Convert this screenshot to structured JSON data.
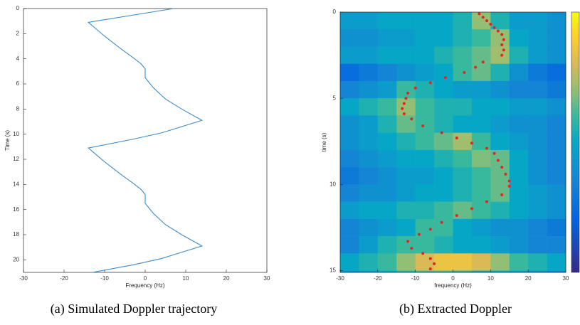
{
  "chart_data": [
    {
      "type": "line",
      "caption": "(a) Simulated Doppler trajectory",
      "xlabel": "Frequency (Hz)",
      "ylabel": "Time (s)",
      "xlim": [
        -30,
        30
      ],
      "xticks": [
        -30,
        -20,
        -10,
        0,
        10,
        20,
        30
      ],
      "ylim": [
        0,
        21
      ],
      "yticks": [
        0,
        2,
        4,
        6,
        8,
        10,
        12,
        14,
        16,
        18,
        20
      ],
      "y_inverted": true,
      "color": "#3d8bc8",
      "x": [
        7,
        -14,
        -10,
        -6,
        -3,
        -1,
        0,
        0,
        1,
        2,
        5,
        9,
        14,
        7,
        4,
        -3,
        -14,
        -10,
        -6,
        -3,
        -1,
        0,
        0,
        1,
        2,
        5,
        9,
        14,
        7,
        4,
        -3,
        -13
      ],
      "values": [
        0,
        1.1,
        2.2,
        3.2,
        3.9,
        4.4,
        4.8,
        5.5,
        5.9,
        6.3,
        7.2,
        8,
        8.9,
        9.6,
        9.9,
        10.4,
        11.1,
        12.2,
        13.2,
        13.9,
        14.4,
        14.8,
        15.5,
        15.9,
        16.3,
        17.2,
        18,
        18.9,
        19.6,
        19.9,
        20.4,
        21
      ]
    },
    {
      "type": "heatmap",
      "caption": "(b) Extracted Doppler",
      "xlabel": "frequency (Hz)",
      "ylabel": "time (s)",
      "xlim": [
        -30,
        30
      ],
      "xticks": [
        -30,
        -20,
        -10,
        0,
        10,
        20,
        30
      ],
      "ylim": [
        0,
        15.1
      ],
      "yticks": [
        0,
        5,
        10,
        15
      ],
      "y_inverted": true,
      "colormap": "parula",
      "clim": [
        0,
        1
      ],
      "heat_x_bins": [
        -30,
        -25,
        -20,
        -15,
        -10,
        -5,
        0,
        5,
        10,
        15,
        20,
        25,
        30
      ],
      "heat_y_bins": [
        0,
        1,
        2,
        3,
        4,
        5,
        6,
        7,
        8,
        9,
        10,
        11,
        12,
        13,
        14,
        15,
        15.1
      ],
      "z": [
        [
          0.45,
          0.45,
          0.5,
          0.5,
          0.5,
          0.5,
          0.55,
          0.7,
          0.55,
          0.45,
          0.45,
          0.4
        ],
        [
          0.4,
          0.4,
          0.45,
          0.45,
          0.5,
          0.5,
          0.55,
          0.6,
          0.7,
          0.5,
          0.45,
          0.4
        ],
        [
          0.45,
          0.45,
          0.5,
          0.5,
          0.5,
          0.55,
          0.6,
          0.65,
          0.72,
          0.55,
          0.45,
          0.4
        ],
        [
          0.25,
          0.3,
          0.35,
          0.4,
          0.45,
          0.5,
          0.6,
          0.65,
          0.55,
          0.4,
          0.3,
          0.25
        ],
        [
          0.35,
          0.4,
          0.45,
          0.6,
          0.55,
          0.5,
          0.45,
          0.45,
          0.4,
          0.35,
          0.35,
          0.3
        ],
        [
          0.5,
          0.55,
          0.6,
          0.7,
          0.6,
          0.55,
          0.55,
          0.5,
          0.5,
          0.45,
          0.45,
          0.4
        ],
        [
          0.4,
          0.45,
          0.55,
          0.65,
          0.6,
          0.55,
          0.5,
          0.5,
          0.45,
          0.4,
          0.4,
          0.35
        ],
        [
          0.4,
          0.45,
          0.5,
          0.55,
          0.6,
          0.65,
          0.72,
          0.6,
          0.5,
          0.45,
          0.4,
          0.35
        ],
        [
          0.35,
          0.4,
          0.45,
          0.5,
          0.5,
          0.55,
          0.6,
          0.68,
          0.65,
          0.5,
          0.4,
          0.35
        ],
        [
          0.3,
          0.35,
          0.4,
          0.45,
          0.45,
          0.5,
          0.55,
          0.6,
          0.65,
          0.5,
          0.4,
          0.35
        ],
        [
          0.35,
          0.4,
          0.4,
          0.45,
          0.5,
          0.5,
          0.55,
          0.6,
          0.65,
          0.5,
          0.45,
          0.4
        ],
        [
          0.45,
          0.5,
          0.5,
          0.55,
          0.55,
          0.6,
          0.65,
          0.6,
          0.55,
          0.5,
          0.45,
          0.4
        ],
        [
          0.35,
          0.4,
          0.45,
          0.5,
          0.6,
          0.6,
          0.5,
          0.45,
          0.4,
          0.4,
          0.35,
          0.3
        ],
        [
          0.35,
          0.45,
          0.55,
          0.6,
          0.6,
          0.55,
          0.5,
          0.5,
          0.45,
          0.4,
          0.35,
          0.35
        ],
        [
          0.5,
          0.55,
          0.6,
          0.7,
          0.8,
          0.85,
          0.85,
          0.8,
          0.7,
          0.6,
          0.55,
          0.5
        ],
        [
          0.4,
          0.45,
          0.5,
          0.55,
          0.6,
          0.6,
          0.55,
          0.5,
          0.5,
          0.45,
          0.4,
          0.35
        ]
      ],
      "series": [
        {
          "color": "#e8231f",
          "x": [
            7,
            8,
            9,
            10,
            11,
            12,
            13,
            13.5,
            13,
            13.5,
            13,
            8,
            6,
            3,
            -2,
            -6,
            -10,
            -12,
            -12.5,
            -13,
            -13.5,
            -13,
            -11,
            -8,
            -3,
            1,
            5,
            9,
            11,
            12,
            13,
            14,
            15,
            15,
            13,
            9,
            5,
            1,
            -3,
            -6,
            -9,
            -12,
            -11,
            -8,
            -6,
            -5,
            -6
          ],
          "values": [
            0.1,
            0.3,
            0.5,
            0.7,
            0.9,
            1.1,
            1.3,
            1.6,
            1.9,
            2.2,
            2.5,
            2.9,
            3.2,
            3.5,
            3.8,
            4.1,
            4.4,
            4.7,
            5,
            5.3,
            5.6,
            5.9,
            6.2,
            6.6,
            7,
            7.3,
            7.6,
            7.9,
            8.2,
            8.6,
            9,
            9.4,
            9.8,
            10.1,
            10.6,
            11,
            11.4,
            11.8,
            12.2,
            12.6,
            12.9,
            13.3,
            13.7,
            14,
            14.3,
            14.6,
            14.9
          ]
        }
      ]
    }
  ]
}
